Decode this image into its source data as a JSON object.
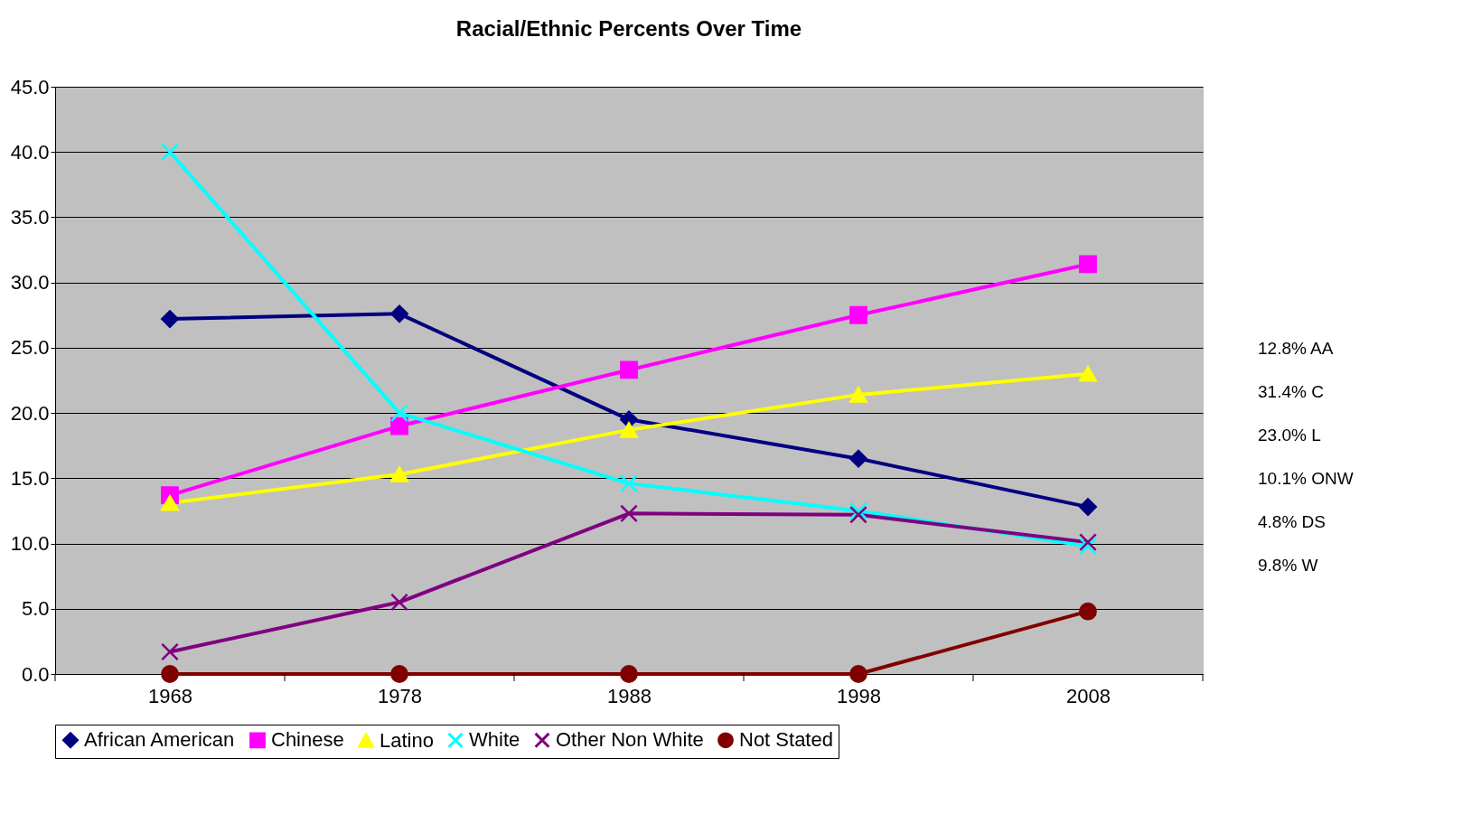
{
  "chart_data": {
    "type": "line",
    "title": "Racial/Ethnic Percents Over Time",
    "categories": [
      "1968",
      "1978",
      "1988",
      "1998",
      "2008"
    ],
    "series": [
      {
        "name": "African American",
        "color": "#000080",
        "marker": "diamond",
        "values": [
          27.2,
          27.6,
          19.5,
          16.5,
          12.8
        ]
      },
      {
        "name": "Chinese",
        "color": "#ff00ff",
        "marker": "square",
        "values": [
          13.7,
          19.0,
          23.3,
          27.5,
          31.4
        ]
      },
      {
        "name": "Latino",
        "color": "#ffff00",
        "marker": "triangle",
        "values": [
          13.1,
          15.3,
          18.7,
          21.4,
          23.0
        ]
      },
      {
        "name": "White",
        "color": "#00ffff",
        "marker": "cross",
        "values": [
          40.0,
          20.0,
          14.6,
          12.5,
          9.8
        ]
      },
      {
        "name": "Other Non White",
        "color": "#800080",
        "marker": "cross",
        "values": [
          1.7,
          5.5,
          12.3,
          12.2,
          10.1
        ]
      },
      {
        "name": "Not Stated",
        "color": "#800000",
        "marker": "circle",
        "values": [
          0,
          0,
          0,
          0,
          4.8
        ]
      }
    ],
    "ylim": [
      0,
      45
    ],
    "yticks": [
      {
        "value": 0,
        "label": "0.0"
      },
      {
        "value": 5,
        "label": "5.0"
      },
      {
        "value": 10,
        "label": "10.0"
      },
      {
        "value": 15,
        "label": "15.0"
      },
      {
        "value": 20,
        "label": "20.0"
      },
      {
        "value": 25,
        "label": "25.0"
      },
      {
        "value": 30,
        "label": "30.0"
      },
      {
        "value": 35,
        "label": "35.0"
      },
      {
        "value": 40,
        "label": "40.0"
      },
      {
        "value": 45,
        "label": "45.0"
      }
    ],
    "grid": "y",
    "legend": "bottom",
    "annotations": [
      "12.8% AA",
      "31.4% C",
      "23.0% L",
      "10.1%  ONW",
      "4.8% DS",
      "9.8% W"
    ]
  }
}
